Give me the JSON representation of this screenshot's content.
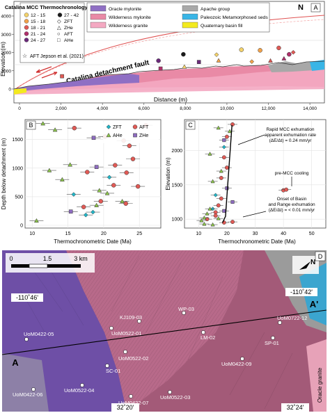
{
  "panelA": {
    "letter": "A",
    "north": "N",
    "legend_title": "Catalina MCC Thermochronology (Ma)",
    "age_bins": [
      "12 - 15",
      "15 - 18",
      "18 - 21",
      "21 - 24",
      "24 - 27",
      "27 - 42"
    ],
    "age_colors": [
      "#f5d36b",
      "#f2a24a",
      "#e05a55",
      "#b0306b",
      "#6b2a7a",
      "#1b1b1b"
    ],
    "method_keys": [
      "ZFT",
      "ZHe",
      "AFT",
      "AHe"
    ],
    "aft_ref": "AFT Jepson et al. (2021)",
    "units": [
      "Oracle mylonite",
      "Wilderness mylonite",
      "Wilderness granite",
      "Apache group",
      "Paleozoic Metamorphosed seds",
      "Quaternary basin fill"
    ],
    "unit_colors": [
      "#8f6fc4",
      "#e98aa6",
      "#f4a9c2",
      "#a8a8a8",
      "#39b5e6",
      "#f3ea1f"
    ],
    "fault_label": "Catalina detachment fault",
    "x_label": "Distance (m)",
    "y_label": "Elevation (m)",
    "x_ticks": [
      "0",
      "2,000",
      "4,000",
      "6,000",
      "8,000",
      "10,000",
      "12,000",
      "14,000"
    ],
    "y_ticks": [
      "0",
      "1000",
      "2000",
      "3000",
      "4000"
    ]
  },
  "panelB": {
    "letter": "B",
    "legend": [
      "ZFT",
      "AFT",
      "AHe",
      "ZHe"
    ],
    "x_label": "Thermochronometric Date (Ma)",
    "y_label": "Depth below detachment (m)",
    "x_ticks": [
      "10",
      "15",
      "20",
      "25"
    ],
    "y_ticks": [
      "0",
      "500",
      "1000",
      "1500"
    ]
  },
  "panelC": {
    "letter": "C",
    "x_label": "Thermochronometric Date (Ma)",
    "y_label": "Elevation (m)",
    "x_ticks": [
      "10",
      "20",
      "30",
      "40",
      "50"
    ],
    "y_ticks": [
      "1000",
      "1500",
      "2000"
    ],
    "ann1": [
      "Rapid MCC exhumation",
      "apparent exhumation rate",
      "(ΔE/Δt) = 0.24 mm/yr"
    ],
    "ann2": "pre-MCC cooling",
    "ann3": [
      "Onset of Basin",
      "and Range exhumation",
      "(ΔE/Δt) = < 0.01 mm/yr"
    ]
  },
  "panelD": {
    "letter": "D",
    "scale_labels": [
      "0",
      "1.5",
      "3 km"
    ],
    "north": "N",
    "coords": [
      "-110˚46'",
      "-110˚42'",
      "32˚20'",
      "32˚24'"
    ],
    "endpoints": [
      "A",
      "A'"
    ],
    "samples": [
      "WP-03",
      "KJ109-03",
      "UoM0522-01",
      "LM-02",
      "UoM0422-05",
      "UoM0522-02",
      "SC-01",
      "UoM0422-09",
      "UoM0722-12",
      "SP-01",
      "UoM0522-04",
      "UoM0422-06",
      "UoM0422-07",
      "UoM0522-03"
    ],
    "granite_label": "Oracle granite"
  },
  "chart_data": [
    {
      "type": "scatter",
      "panel": "A",
      "xlabel": "Distance (m)",
      "ylabel": "Elevation (m)",
      "xlim": [
        0,
        14500
      ],
      "ylim": [
        0,
        4200
      ],
      "series": [
        {
          "name": "ZFT",
          "points": [
            [
              9500,
              1880
            ],
            [
              11200,
              1500
            ],
            [
              13200,
              2010
            ]
          ]
        },
        {
          "name": "ZHe",
          "points": [
            [
              2050,
              700
            ],
            [
              6800,
              1120
            ],
            [
              8650,
              1480
            ]
          ]
        },
        {
          "name": "AFT",
          "points": [
            [
              6700,
              1550
            ],
            [
              7900,
              1900
            ],
            [
              10700,
              2150
            ],
            [
              11600,
              2120
            ],
            [
              12500,
              2250
            ],
            [
              13000,
              1900
            ]
          ]
        },
        {
          "name": "AHe",
          "points": [
            [
              7950,
              1220
            ],
            [
              9600,
              1560
            ],
            [
              12100,
              1550
            ],
            [
              12750,
              1670
            ]
          ]
        }
      ]
    },
    {
      "type": "scatter",
      "panel": "B",
      "xlabel": "Thermochronometric Date (Ma)",
      "ylabel": "Depth below detachment (m)",
      "xlim": [
        9,
        28
      ],
      "ylim": [
        0,
        1800
      ],
      "series": [
        {
          "name": "ZFT",
          "points": [
            [
              17.5,
              180
            ],
            [
              18.5,
              230
            ],
            [
              15.8,
              540
            ],
            [
              20.8,
              840
            ]
          ]
        },
        {
          "name": "AFT",
          "points": [
            [
              15.9,
              1700
            ],
            [
              20.2,
              1550
            ],
            [
              22.8,
              1480
            ],
            [
              23.6,
              1390
            ],
            [
              24.1,
              1160
            ],
            [
              21.6,
              1050
            ],
            [
              17.7,
              930
            ],
            [
              23.2,
              920
            ],
            [
              21.4,
              700
            ],
            [
              24.8,
              680
            ],
            [
              19.6,
              420
            ],
            [
              23.1,
              380
            ],
            [
              17.2,
              320
            ],
            [
              25.9,
              1750
            ]
          ]
        },
        {
          "name": "AHe",
          "points": [
            [
              11.5,
              1780
            ],
            [
              13.2,
              1670
            ],
            [
              12.4,
              960
            ],
            [
              15.3,
              1060
            ],
            [
              14.2,
              800
            ],
            [
              19.4,
              610
            ],
            [
              20.5,
              560
            ],
            [
              22.6,
              420
            ],
            [
              10.6,
              80
            ],
            [
              19.0,
              350
            ]
          ]
        },
        {
          "name": "ZHe",
          "points": [
            [
              18.6,
              1530
            ],
            [
              19.0,
              1020
            ],
            [
              15.4,
              240
            ]
          ]
        }
      ]
    },
    {
      "type": "scatter",
      "panel": "C",
      "xlabel": "Thermochronometric Date (Ma)",
      "ylabel": "Elevation (m)",
      "xlim": [
        5,
        55
      ],
      "ylim": [
        870,
        2450
      ],
      "series": [
        {
          "name": "ZFT",
          "points": [
            [
              19,
              2050
            ],
            [
              16,
              1350
            ],
            [
              15,
              1150
            ]
          ]
        },
        {
          "name": "AFT",
          "points": [
            [
              22,
              2380
            ],
            [
              20,
              2200
            ],
            [
              19,
              1900
            ],
            [
              20,
              1750
            ],
            [
              18,
              1600
            ],
            [
              18,
              1300
            ],
            [
              17,
              1200
            ],
            [
              16,
              1100
            ],
            [
              16,
              1050
            ],
            [
              13,
              1000
            ],
            [
              40,
              1420
            ],
            [
              41,
              1430
            ],
            [
              22,
              960
            ],
            [
              19,
              950
            ]
          ]
        },
        {
          "name": "AHe",
          "points": [
            [
              21,
              2280
            ],
            [
              17,
              2330
            ],
            [
              14,
              1950
            ],
            [
              18,
              1700
            ],
            [
              15,
              1550
            ],
            [
              14,
              1150
            ],
            [
              13,
              1080
            ],
            [
              12,
              1020
            ],
            [
              11,
              980
            ],
            [
              12,
              930
            ],
            [
              15,
              920
            ],
            [
              17,
              1010
            ]
          ]
        },
        {
          "name": "ZHe",
          "points": [
            [
              19,
              2150
            ],
            [
              20,
              1450
            ],
            [
              22,
              1250
            ],
            [
              19,
              1120
            ]
          ]
        }
      ],
      "trend_line": [
        [
          18.5,
          950
        ],
        [
          19.5,
          1040
        ],
        [
          21.8,
          2370
        ]
      ]
    }
  ]
}
